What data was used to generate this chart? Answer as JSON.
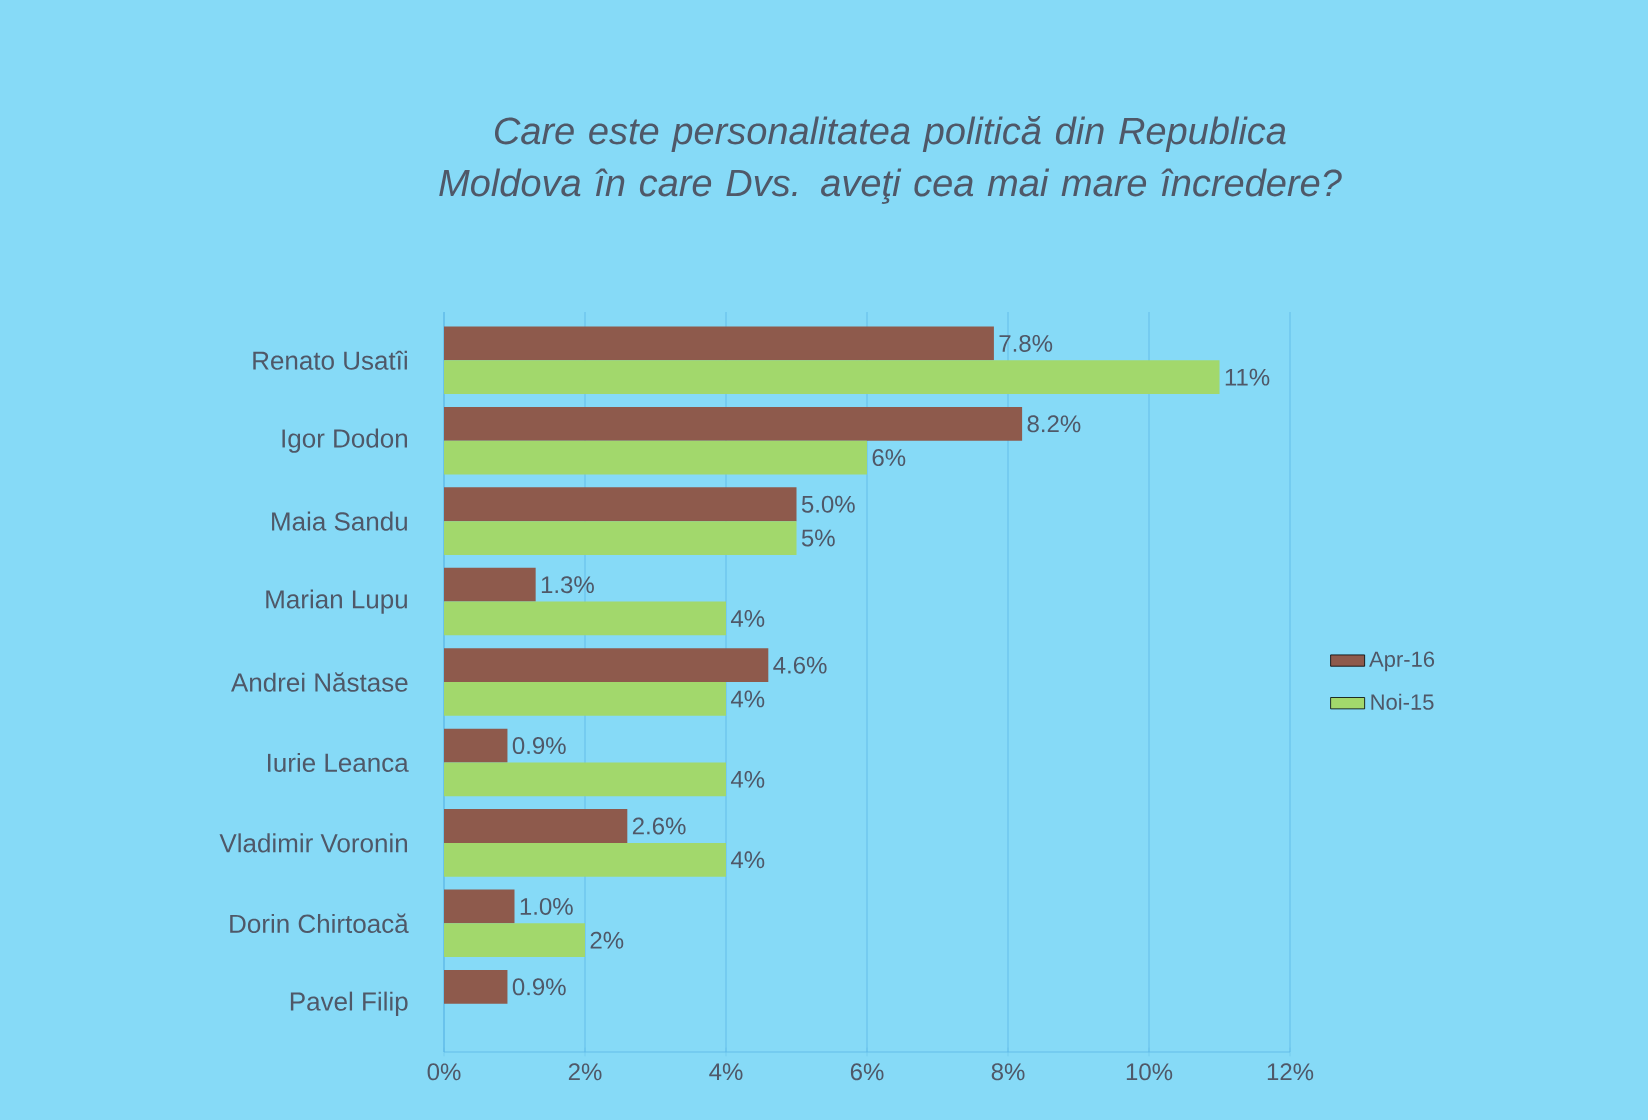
{
  "chart_data": {
    "type": "bar",
    "orientation": "horizontal",
    "title": "Care este personalitatea politică din Republica Moldova în care Dvs. aveţi cea mai mare încredere?",
    "categories": [
      "Renato Usatîi",
      "Igor Dodon",
      "Maia Sandu",
      "Marian Lupu",
      "Andrei Năstase",
      "Iurie Leanca",
      "Vladimir Voronin",
      "Dorin Chirtoacă",
      "Pavel Filip"
    ],
    "series": [
      {
        "name": "Apr-16",
        "color": "#8e5a4c",
        "values": [
          7.8,
          8.2,
          5.0,
          1.3,
          4.6,
          0.9,
          2.6,
          1.0,
          0.9
        ],
        "value_labels": [
          "7.8%",
          "8.2%",
          "5.0%",
          "1.3%",
          "4.6%",
          "0.9%",
          "2.6%",
          "1.0%",
          "0.9%"
        ]
      },
      {
        "name": "Noi-15",
        "color": "#a2d86c",
        "values": [
          11,
          6,
          5,
          4,
          4,
          4,
          4,
          2,
          null
        ],
        "value_labels": [
          "11%",
          "6%",
          "5%",
          "4%",
          "4%",
          "4%",
          "4%",
          "2%",
          null
        ]
      }
    ],
    "xlim": [
      0,
      12
    ],
    "xticks": [
      {
        "value": 0,
        "label": "0%"
      },
      {
        "value": 2,
        "label": "2%"
      },
      {
        "value": 4,
        "label": "4%"
      },
      {
        "value": 6,
        "label": "6%"
      },
      {
        "value": 8,
        "label": "8%"
      },
      {
        "value": 10,
        "label": "10%"
      },
      {
        "value": 12,
        "label": "12%"
      }
    ],
    "grid": "x",
    "legend": "right"
  }
}
